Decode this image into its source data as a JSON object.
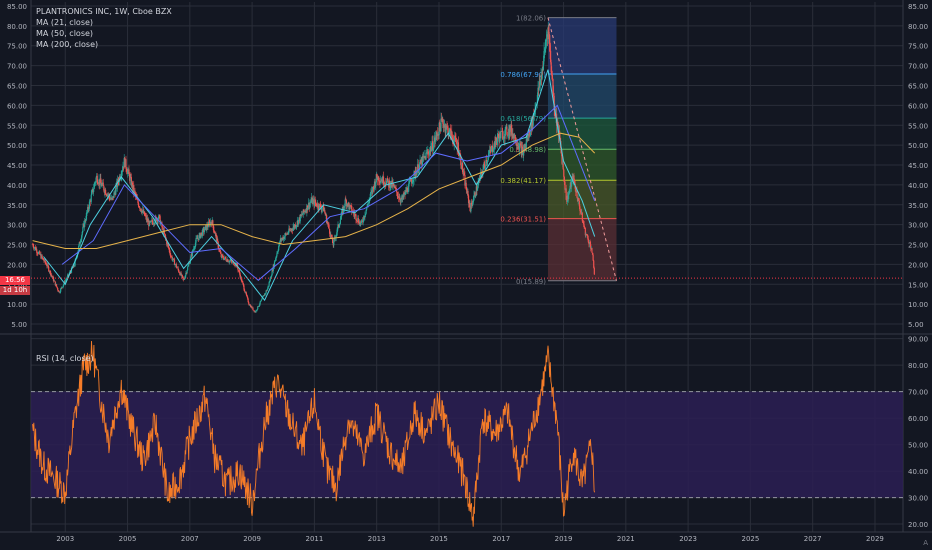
{
  "legend": {
    "title": "PLANTRONICS INC, 1W, Cboe BZX",
    "ma1": "MA (21, close)",
    "ma2": "MA (50, close)",
    "ma3": "MA (200, close)",
    "rsi": "RSI (14, close)"
  },
  "badges": {
    "last_price": "16.56",
    "countdown": "1d 10h",
    "last_color": "#f23645",
    "countdown_color": "#c53b43"
  },
  "corner_label": "A",
  "colors": {
    "background": "#131722",
    "grid": "#2a2e39",
    "text": "#b2b5be",
    "up": "#26a69a",
    "down": "#ef5350",
    "ma21": "#4dd0e1",
    "ma50": "#5e6cff",
    "ma200": "#e6b34a",
    "rsi": "#f57c28",
    "rsi_band": "#2b1e54"
  },
  "chart_data": [
    {
      "type": "candlestick",
      "title": "PLANTRONICS INC, 1W, Cboe BZX",
      "y_ticks": [
        "5.00",
        "10.00",
        "15.00",
        "20.00",
        "25.00",
        "30.00",
        "35.00",
        "40.00",
        "45.00",
        "50.00",
        "55.00",
        "60.00",
        "65.00",
        "70.00",
        "75.00",
        "80.00",
        "85.00"
      ],
      "x_ticks": [
        "2003",
        "2005",
        "2007",
        "2009",
        "2011",
        "2013",
        "2015",
        "2017",
        "2019",
        "2021",
        "2023",
        "2025",
        "2027",
        "2029"
      ],
      "xlim": [
        2001.9,
        2029.9
      ],
      "ylim": [
        3,
        86
      ],
      "price_path": [
        [
          2001.95,
          25
        ],
        [
          2002.4,
          20
        ],
        [
          2002.8,
          13
        ],
        [
          2003.3,
          20
        ],
        [
          2003.6,
          30
        ],
        [
          2004.0,
          42
        ],
        [
          2004.5,
          36
        ],
        [
          2004.9,
          46
        ],
        [
          2005.3,
          36
        ],
        [
          2005.7,
          30
        ],
        [
          2006.0,
          32
        ],
        [
          2006.4,
          22
        ],
        [
          2006.8,
          16
        ],
        [
          2007.2,
          26
        ],
        [
          2007.7,
          31
        ],
        [
          2008.0,
          22
        ],
        [
          2008.5,
          20
        ],
        [
          2008.9,
          10
        ],
        [
          2009.1,
          8
        ],
        [
          2009.5,
          14
        ],
        [
          2009.9,
          26
        ],
        [
          2010.4,
          30
        ],
        [
          2010.9,
          36
        ],
        [
          2011.3,
          34
        ],
        [
          2011.6,
          25
        ],
        [
          2012.0,
          36
        ],
        [
          2012.5,
          30
        ],
        [
          2013.0,
          42
        ],
        [
          2013.5,
          40
        ],
        [
          2013.8,
          36
        ],
        [
          2014.3,
          44
        ],
        [
          2014.8,
          50
        ],
        [
          2015.1,
          56
        ],
        [
          2015.6,
          50
        ],
        [
          2016.0,
          34
        ],
        [
          2016.5,
          46
        ],
        [
          2016.9,
          52
        ],
        [
          2017.3,
          54
        ],
        [
          2017.7,
          48
        ],
        [
          2018.0,
          56
        ],
        [
          2018.3,
          68
        ],
        [
          2018.5,
          80
        ],
        [
          2018.7,
          60
        ],
        [
          2018.9,
          50
        ],
        [
          2019.1,
          36
        ],
        [
          2019.3,
          42
        ],
        [
          2019.5,
          35
        ],
        [
          2019.7,
          28
        ],
        [
          2019.9,
          24
        ],
        [
          2020.0,
          17
        ]
      ],
      "series": [
        {
          "name": "MA (21, close)",
          "values": [
            [
              2002.3,
              22
            ],
            [
              2003.0,
              15
            ],
            [
              2003.8,
              30
            ],
            [
              2004.8,
              42
            ],
            [
              2005.8,
              32
            ],
            [
              2006.8,
              19
            ],
            [
              2007.7,
              27
            ],
            [
              2008.7,
              18
            ],
            [
              2009.4,
              11
            ],
            [
              2010.3,
              26
            ],
            [
              2011.3,
              35
            ],
            [
              2012.3,
              33
            ],
            [
              2013.3,
              40
            ],
            [
              2014.3,
              42
            ],
            [
              2015.3,
              53
            ],
            [
              2016.2,
              40
            ],
            [
              2017.0,
              50
            ],
            [
              2017.8,
              52
            ],
            [
              2018.5,
              69
            ],
            [
              2019.0,
              46
            ],
            [
              2019.6,
              36
            ],
            [
              2020.0,
              27
            ]
          ]
        },
        {
          "name": "MA (50, close)",
          "values": [
            [
              2002.9,
              20
            ],
            [
              2003.9,
              26
            ],
            [
              2004.9,
              40
            ],
            [
              2006.0,
              31
            ],
            [
              2007.0,
              23
            ],
            [
              2008.0,
              24
            ],
            [
              2009.2,
              16
            ],
            [
              2010.4,
              24
            ],
            [
              2011.5,
              32
            ],
            [
              2012.6,
              34
            ],
            [
              2013.7,
              39
            ],
            [
              2014.9,
              48
            ],
            [
              2015.9,
              46
            ],
            [
              2017.0,
              48
            ],
            [
              2018.0,
              54
            ],
            [
              2018.8,
              60
            ],
            [
              2019.4,
              48
            ],
            [
              2020.0,
              36
            ]
          ]
        },
        {
          "name": "MA (200, close)",
          "values": [
            [
              2001.95,
              26
            ],
            [
              2003.0,
              24
            ],
            [
              2004.0,
              24
            ],
            [
              2005.0,
              26
            ],
            [
              2006.0,
              28
            ],
            [
              2007.0,
              30
            ],
            [
              2008.0,
              30
            ],
            [
              2009.0,
              27
            ],
            [
              2010.0,
              25
            ],
            [
              2011.0,
              26
            ],
            [
              2012.0,
              27
            ],
            [
              2013.0,
              30
            ],
            [
              2014.0,
              34
            ],
            [
              2015.0,
              39
            ],
            [
              2016.0,
              42
            ],
            [
              2017.0,
              45
            ],
            [
              2018.0,
              50
            ],
            [
              2018.9,
              53
            ],
            [
              2019.5,
              52
            ],
            [
              2020.0,
              48
            ]
          ]
        }
      ],
      "fibonacci": {
        "x_range": [
          2018.5,
          2020.7
        ],
        "levels": [
          {
            "label": "1(82.06)",
            "ratio": 1,
            "price": 82.06,
            "color": "#787b86"
          },
          {
            "label": "0.786(67.90)",
            "ratio": 0.786,
            "price": 67.9,
            "color": "#42a5f5"
          },
          {
            "label": "0.618(56.79)",
            "ratio": 0.618,
            "price": 56.79,
            "color": "#26a69a"
          },
          {
            "label": "0.5(48.98)",
            "ratio": 0.5,
            "price": 48.98,
            "color": "#66bb6a"
          },
          {
            "label": "0.382(41.17)",
            "ratio": 0.382,
            "price": 41.17,
            "color": "#b5c72f"
          },
          {
            "label": "0.236(31.51)",
            "ratio": 0.236,
            "price": 31.51,
            "color": "#ef5350"
          },
          {
            "label": "0(15.89)",
            "ratio": 0,
            "price": 15.89,
            "color": "#787b86"
          }
        ],
        "zone_colors": [
          "#283a73",
          "#214a6b",
          "#1e5a3c",
          "#2f5a2a",
          "#4a5a28",
          "#5a2f34"
        ]
      },
      "projection": [
        [
          2018.5,
          82.06
        ],
        [
          2020.7,
          15.89
        ]
      ],
      "last_price": 16.56
    },
    {
      "type": "line",
      "title": "RSI (14, close)",
      "y_ticks": [
        "20.00",
        "30.00",
        "40.00",
        "50.00",
        "60.00",
        "70.00",
        "80.00",
        "90.00"
      ],
      "ylim": [
        17,
        91
      ],
      "bands": [
        30,
        70
      ],
      "x": [
        2001.95,
        2002.3,
        2002.6,
        2003.0,
        2003.3,
        2003.6,
        2003.9,
        2004.1,
        2004.4,
        2004.8,
        2005.0,
        2005.5,
        2005.9,
        2006.3,
        2006.7,
        2007.0,
        2007.5,
        2007.8,
        2008.2,
        2008.6,
        2009.0,
        2009.4,
        2009.8,
        2010.2,
        2010.6,
        2011.0,
        2011.4,
        2011.7,
        2012.1,
        2012.6,
        2013.0,
        2013.4,
        2013.8,
        2014.2,
        2014.6,
        2015.0,
        2015.4,
        2015.8,
        2016.1,
        2016.4,
        2016.8,
        2017.2,
        2017.6,
        2017.9,
        2018.2,
        2018.5,
        2018.8,
        2019.0,
        2019.3,
        2019.6,
        2019.9,
        2020.0
      ],
      "values": [
        55,
        42,
        38,
        32,
        60,
        80,
        84,
        70,
        52,
        72,
        62,
        44,
        58,
        30,
        38,
        52,
        68,
        45,
        35,
        40,
        28,
        58,
        74,
        60,
        48,
        66,
        40,
        34,
        60,
        46,
        62,
        48,
        40,
        62,
        54,
        66,
        50,
        38,
        22,
        60,
        54,
        62,
        38,
        52,
        66,
        82,
        58,
        24,
        48,
        34,
        50,
        32
      ]
    }
  ]
}
